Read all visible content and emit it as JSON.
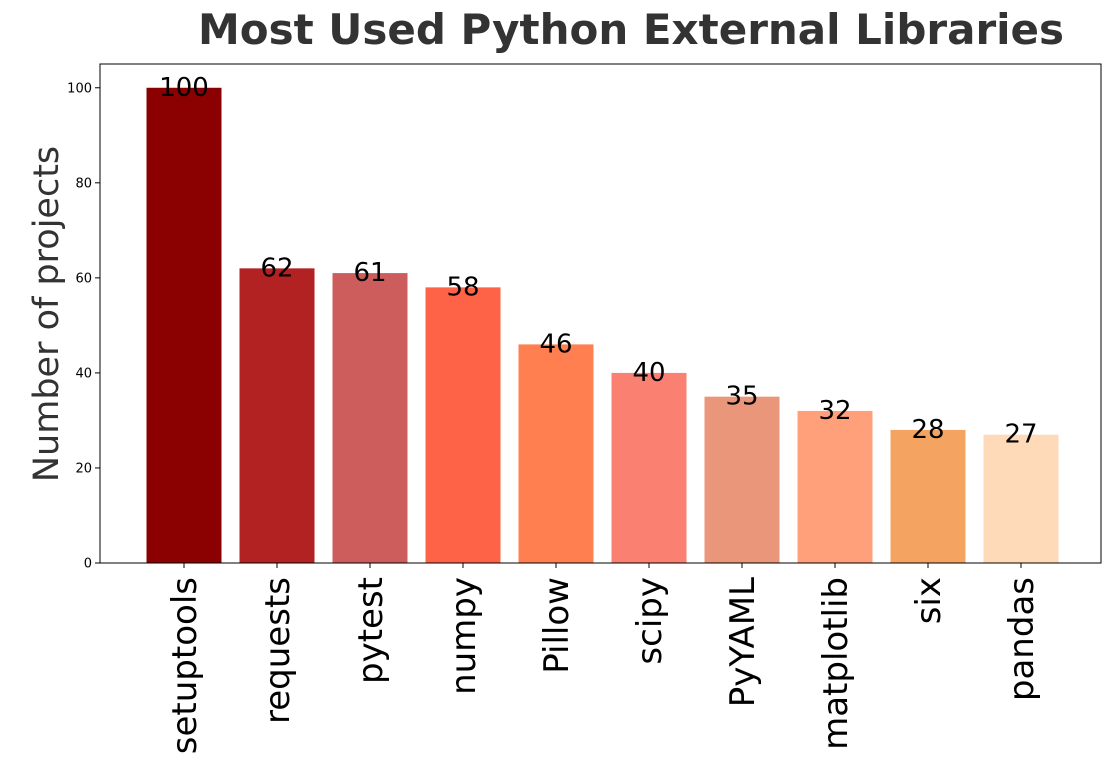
{
  "chart_data": {
    "type": "bar",
    "title": "Most Used Python External Libraries",
    "xlabel": "",
    "ylabel": "Number of projects",
    "ylim": [
      0,
      105
    ],
    "yticks": [
      0,
      20,
      40,
      60,
      80,
      100
    ],
    "grid": false,
    "legend": "none",
    "categories": [
      "setuptools",
      "requests",
      "pytest",
      "numpy",
      "Pillow",
      "scipy",
      "PyYAML",
      "matplotlib",
      "six",
      "pandas"
    ],
    "values": [
      100,
      62,
      61,
      58,
      46,
      40,
      35,
      32,
      28,
      27
    ],
    "colors": [
      "#8b0000",
      "#b22222",
      "#cd5c5c",
      "#ff6347",
      "#ff7f50",
      "#fa8072",
      "#e9967a",
      "#ffa07a",
      "#f4a460",
      "#ffdab9"
    ]
  }
}
